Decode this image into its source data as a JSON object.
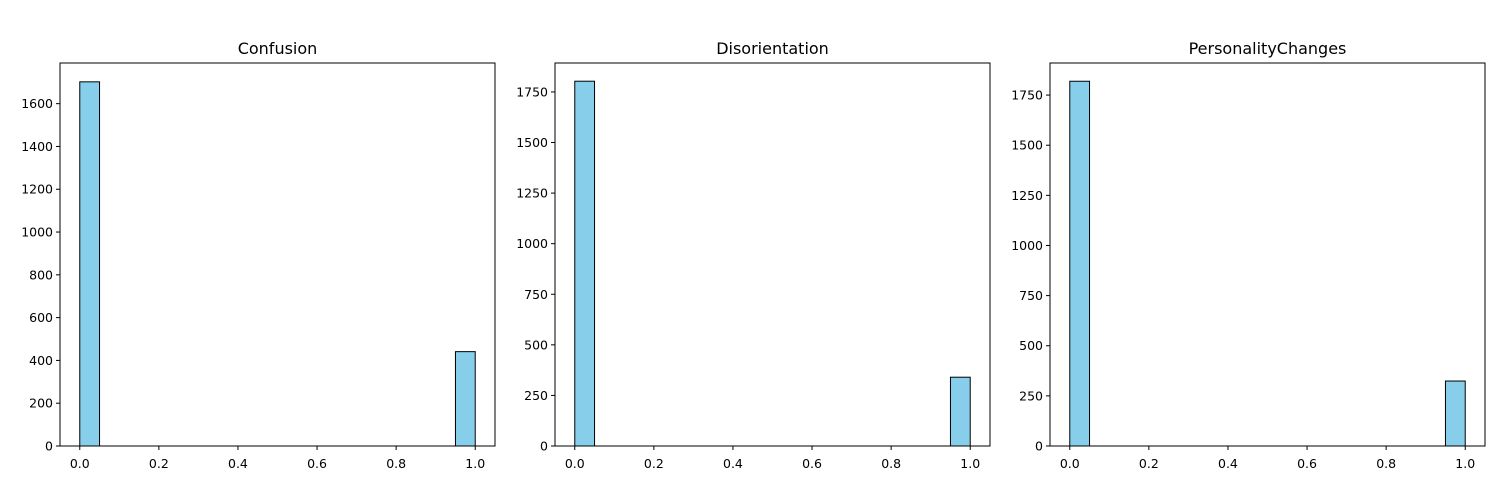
{
  "chart_data": [
    {
      "type": "bar",
      "title": "Confusion",
      "xlabel": "",
      "ylabel": "",
      "bins": [
        {
          "x0": 0.0,
          "x1": 0.05,
          "count": 1702
        },
        {
          "x0": 0.95,
          "x1": 1.0,
          "count": 441
        }
      ],
      "xlim": [
        -0.05,
        1.05
      ],
      "ylim": [
        0,
        1790
      ],
      "xticks": [
        0.0,
        0.2,
        0.4,
        0.6,
        0.8,
        1.0
      ],
      "xtick_labels": [
        "0.0",
        "0.2",
        "0.4",
        "0.6",
        "0.8",
        "1.0"
      ],
      "yticks": [
        0,
        200,
        400,
        600,
        800,
        1000,
        1200,
        1400,
        1600
      ],
      "ytick_labels": [
        "0",
        "200",
        "400",
        "600",
        "800",
        "1000",
        "1200",
        "1400",
        "1600"
      ],
      "grid": false
    },
    {
      "type": "bar",
      "title": "Disorientation",
      "xlabel": "",
      "ylabel": "",
      "bins": [
        {
          "x0": 0.0,
          "x1": 0.05,
          "count": 1803
        },
        {
          "x0": 0.95,
          "x1": 1.0,
          "count": 340
        }
      ],
      "xlim": [
        -0.05,
        1.05
      ],
      "ylim": [
        0,
        1893
      ],
      "xticks": [
        0.0,
        0.2,
        0.4,
        0.6,
        0.8,
        1.0
      ],
      "xtick_labels": [
        "0.0",
        "0.2",
        "0.4",
        "0.6",
        "0.8",
        "1.0"
      ],
      "yticks": [
        0,
        250,
        500,
        750,
        1000,
        1250,
        1500,
        1750
      ],
      "ytick_labels": [
        "0",
        "250",
        "500",
        "750",
        "1000",
        "1250",
        "1500",
        "1750"
      ],
      "grid": false
    },
    {
      "type": "bar",
      "title": "PersonalityChanges",
      "xlabel": "",
      "ylabel": "",
      "bins": [
        {
          "x0": 0.0,
          "x1": 0.05,
          "count": 1819
        },
        {
          "x0": 0.95,
          "x1": 1.0,
          "count": 324
        }
      ],
      "xlim": [
        -0.05,
        1.05
      ],
      "ylim": [
        0,
        1910
      ],
      "xticks": [
        0.0,
        0.2,
        0.4,
        0.6,
        0.8,
        1.0
      ],
      "xtick_labels": [
        "0.0",
        "0.2",
        "0.4",
        "0.6",
        "0.8",
        "1.0"
      ],
      "yticks": [
        0,
        250,
        500,
        750,
        1000,
        1250,
        1500,
        1750
      ],
      "ytick_labels": [
        "0",
        "250",
        "500",
        "750",
        "1000",
        "1250",
        "1500",
        "1750"
      ],
      "grid": false
    }
  ],
  "colors": {
    "bar_fill": "#87ceeb",
    "bar_edge": "#000000",
    "axes": "#000000",
    "background": "#ffffff"
  }
}
